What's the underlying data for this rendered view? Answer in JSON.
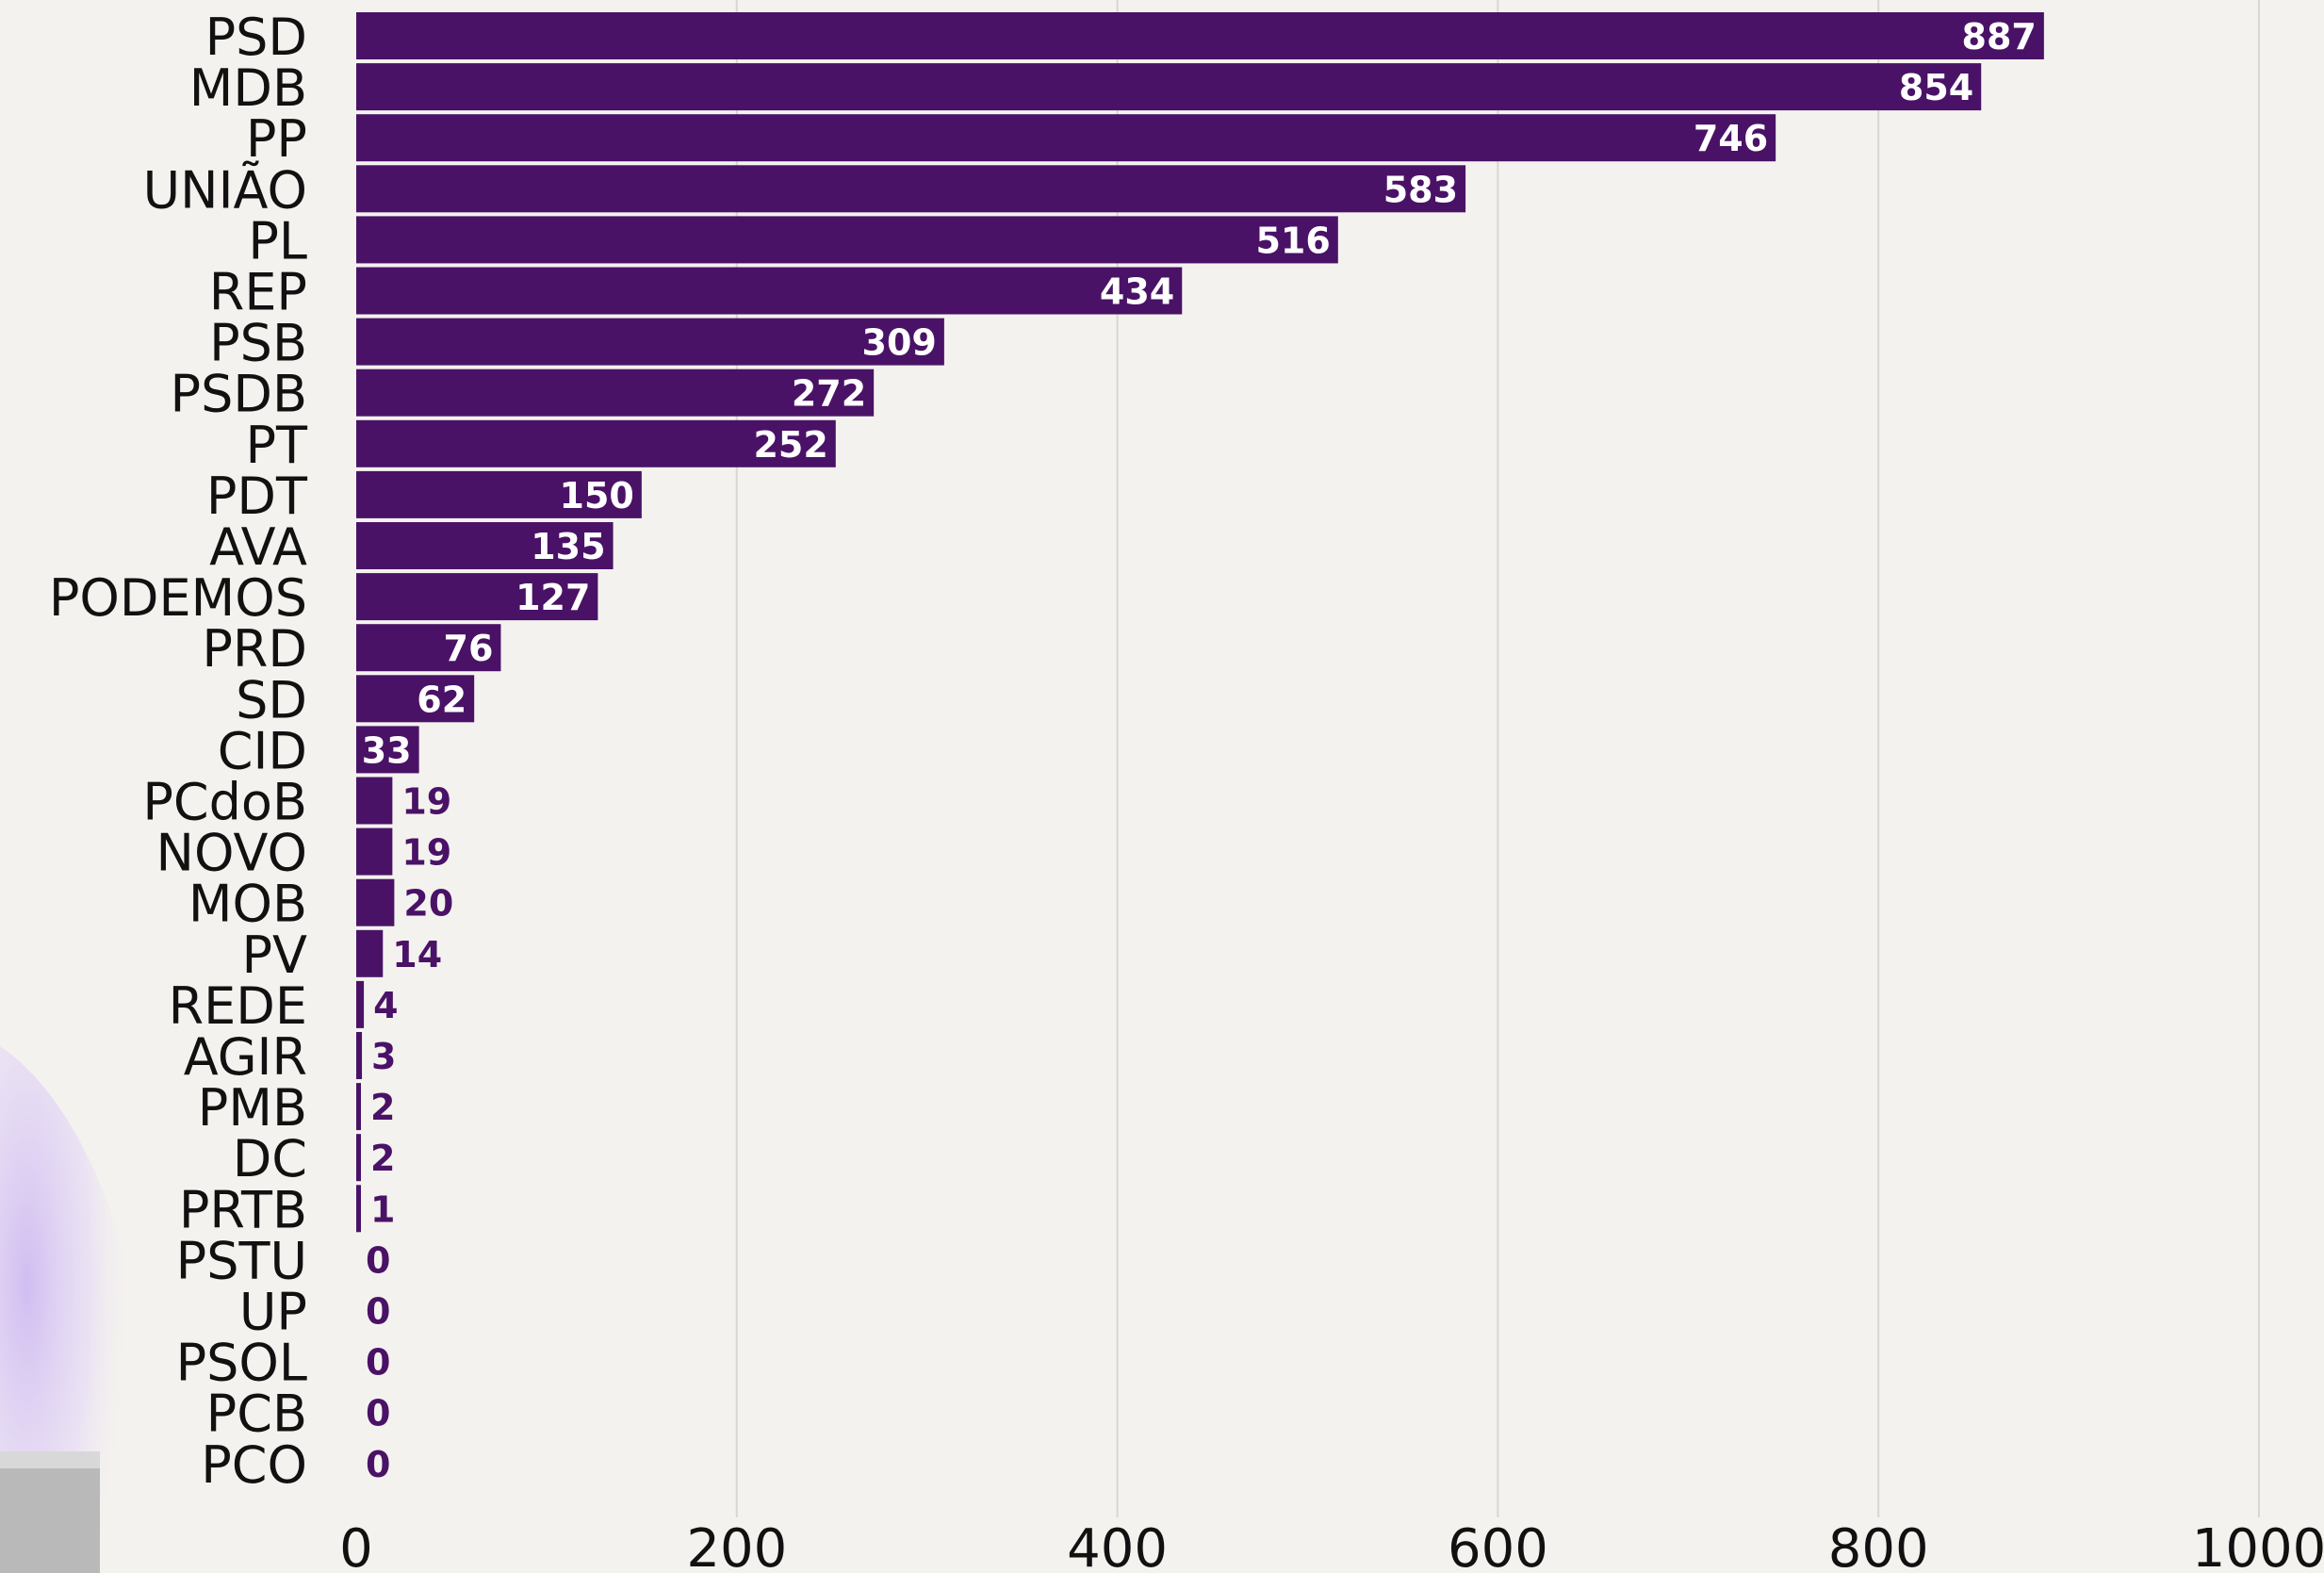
{
  "theme": {
    "background": "#f4f2ee",
    "bar_color": "#4a1267",
    "inside_label_color": "#ffffff",
    "outside_label_color": "#4a1267",
    "grid_color": "#d9d6d2",
    "text_color": "#111111"
  },
  "chart_data": {
    "type": "bar",
    "orientation": "horizontal",
    "categories": [
      "PSD",
      "MDB",
      "PP",
      "UNIÃO",
      "PL",
      "REP",
      "PSB",
      "PSDB",
      "PT",
      "PDT",
      "AVA",
      "PODEMOS",
      "PRD",
      "SD",
      "CID",
      "PCdoB",
      "NOVO",
      "MOB",
      "PV",
      "REDE",
      "AGIR",
      "PMB",
      "DC",
      "PRTB",
      "PSTU",
      "UP",
      "PSOL",
      "PCB",
      "PCO"
    ],
    "values": [
      887,
      854,
      746,
      583,
      516,
      434,
      309,
      272,
      252,
      150,
      135,
      127,
      76,
      62,
      33,
      19,
      19,
      20,
      14,
      4,
      3,
      2,
      2,
      1,
      0,
      0,
      0,
      0,
      0
    ],
    "xlim": [
      0,
      1000
    ],
    "xticks": [
      "0",
      "200",
      "400",
      "600",
      "800",
      "1000"
    ],
    "grid": true,
    "data_labels": true
  }
}
